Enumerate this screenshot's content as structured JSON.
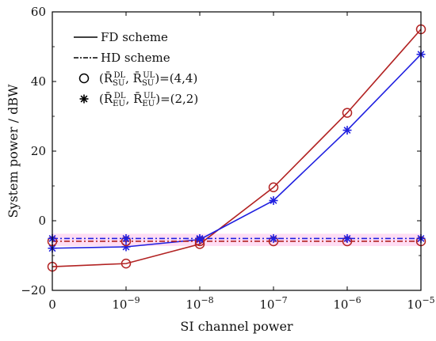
{
  "chart_data": {
    "type": "line",
    "title": "",
    "xlabel": "SI channel power",
    "ylabel": "System power / dBW",
    "x_ticks": [
      {
        "base": "0",
        "exp": ""
      },
      {
        "base": "10",
        "exp": "−9"
      },
      {
        "base": "10",
        "exp": "−8"
      },
      {
        "base": "10",
        "exp": "−7"
      },
      {
        "base": "10",
        "exp": "−6"
      },
      {
        "base": "10",
        "exp": "−5"
      }
    ],
    "ylim": [
      -20,
      60
    ],
    "y_ticks": [
      "−20",
      "0",
      "20",
      "40",
      "60"
    ],
    "y_tick_values": [
      -20,
      0,
      20,
      40,
      60
    ],
    "grid": false,
    "legend_position": "top-left",
    "legend": [
      {
        "label": "FD scheme",
        "style": "solid"
      },
      {
        "label": "HD scheme",
        "style": "dashdot"
      },
      {
        "label": "(R̄ᴰᴸSU, R̄ᵁᴸSU)=(4,4)",
        "main": "(R̄",
        "sub1": "SU",
        "sup1": "DL",
        "sep": ", R̄",
        "sub2": "SU",
        "sup2": "UL",
        "tail": ")=(4,4)",
        "marker": "circle"
      },
      {
        "label": "(R̄ᴰᴸEU, R̄ᵁᴸEU)=(2,2)",
        "main": "(R̄",
        "sub1": "EU",
        "sup1": "DL",
        "sep": ", R̄",
        "sub2": "EU",
        "sup2": "UL",
        "tail": ")=(2,2)",
        "marker": "star"
      }
    ],
    "series": [
      {
        "scheme": "FD",
        "marker": "circle",
        "color": "#b22222",
        "style": "solid",
        "values": [
          -13.2,
          -12.3,
          -6.7,
          9.6,
          31.0,
          55.0
        ]
      },
      {
        "scheme": "FD",
        "marker": "star",
        "color": "#1f1fe0",
        "style": "solid",
        "values": [
          -7.9,
          -7.5,
          -5.4,
          5.8,
          26.0,
          47.8
        ]
      },
      {
        "scheme": "HD",
        "marker": "circle",
        "color": "#b22222",
        "style": "dashdot",
        "values": [
          -5.9,
          -5.9,
          -5.9,
          -5.9,
          -5.9,
          -5.9
        ]
      },
      {
        "scheme": "HD",
        "marker": "star",
        "color": "#1f1fe0",
        "style": "dashdot",
        "values": [
          -5.1,
          -5.1,
          -5.1,
          -5.1,
          -5.1,
          -5.1
        ]
      }
    ],
    "colors": {
      "axis": "#000000",
      "glow": "#ff66cc"
    }
  }
}
